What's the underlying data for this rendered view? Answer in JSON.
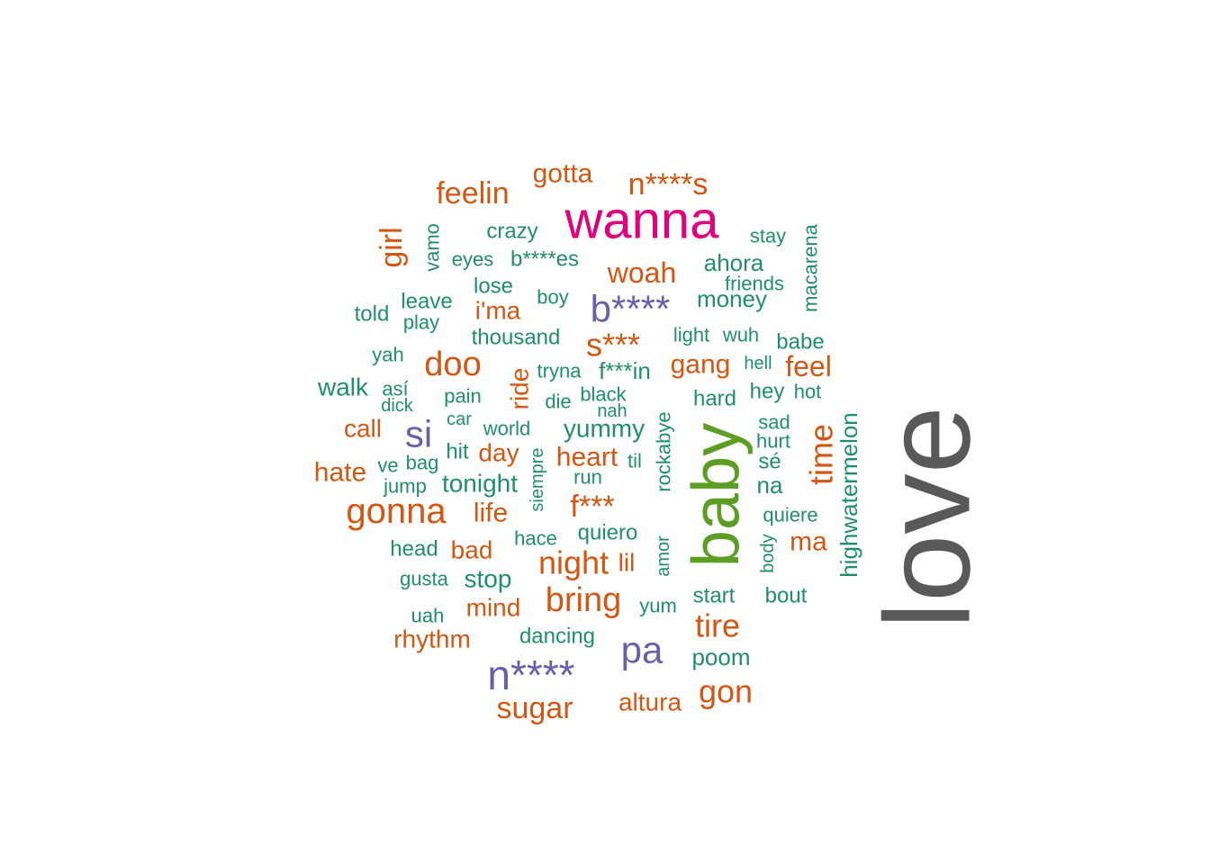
{
  "colors": {
    "dark_gray": "#595959",
    "green": "#5b9e23",
    "magenta": "#e0007c",
    "purple": "#6a5fa8",
    "orange": "#d35612",
    "teal": "#1f8f6b"
  },
  "words": [
    {
      "text": "love",
      "color": "dark_gray",
      "rotated": true
    },
    {
      "text": "baby",
      "color": "green",
      "rotated": true
    },
    {
      "text": "wanna",
      "color": "magenta"
    },
    {
      "text": "n****",
      "color": "purple"
    },
    {
      "text": "b****",
      "color": "purple"
    },
    {
      "text": "si",
      "color": "purple"
    },
    {
      "text": "pa",
      "color": "purple"
    },
    {
      "text": "gonna",
      "color": "orange"
    },
    {
      "text": "bring",
      "color": "orange"
    },
    {
      "text": "doo",
      "color": "orange"
    },
    {
      "text": "night",
      "color": "orange"
    },
    {
      "text": "tire",
      "color": "orange"
    },
    {
      "text": "gon",
      "color": "orange"
    },
    {
      "text": "sugar",
      "color": "orange"
    },
    {
      "text": "s***",
      "color": "orange"
    },
    {
      "text": "f***",
      "color": "orange"
    },
    {
      "text": "time",
      "color": "orange",
      "rotated": true
    },
    {
      "text": "n****s",
      "color": "orange"
    },
    {
      "text": "feelin",
      "color": "orange"
    },
    {
      "text": "girl",
      "color": "orange",
      "rotated": true
    },
    {
      "text": "woah",
      "color": "orange"
    },
    {
      "text": "gotta",
      "color": "orange"
    },
    {
      "text": "feel",
      "color": "orange"
    },
    {
      "text": "gang",
      "color": "orange"
    },
    {
      "text": "life",
      "color": "orange"
    },
    {
      "text": "heart",
      "color": "orange"
    },
    {
      "text": "hate",
      "color": "orange"
    },
    {
      "text": "ma",
      "color": "orange"
    },
    {
      "text": "i'ma",
      "color": "orange"
    },
    {
      "text": "ride",
      "color": "orange",
      "rotated": true
    },
    {
      "text": "day",
      "color": "orange"
    },
    {
      "text": "bad",
      "color": "orange"
    },
    {
      "text": "call",
      "color": "orange"
    },
    {
      "text": "mind",
      "color": "orange"
    },
    {
      "text": "rhythm",
      "color": "orange"
    },
    {
      "text": "altura",
      "color": "orange"
    },
    {
      "text": "lil",
      "color": "orange"
    },
    {
      "text": "crazy",
      "color": "teal"
    },
    {
      "text": "stay",
      "color": "teal"
    },
    {
      "text": "vamo",
      "color": "teal",
      "rotated": true
    },
    {
      "text": "eyes",
      "color": "teal"
    },
    {
      "text": "b****es",
      "color": "teal"
    },
    {
      "text": "ahora",
      "color": "teal"
    },
    {
      "text": "friends",
      "color": "teal"
    },
    {
      "text": "macarena",
      "color": "teal",
      "rotated": true
    },
    {
      "text": "lose",
      "color": "teal"
    },
    {
      "text": "leave",
      "color": "teal"
    },
    {
      "text": "boy",
      "color": "teal"
    },
    {
      "text": "money",
      "color": "teal"
    },
    {
      "text": "told",
      "color": "teal"
    },
    {
      "text": "play",
      "color": "teal"
    },
    {
      "text": "thousand",
      "color": "teal"
    },
    {
      "text": "light",
      "color": "teal"
    },
    {
      "text": "wuh",
      "color": "teal"
    },
    {
      "text": "babe",
      "color": "teal"
    },
    {
      "text": "yah",
      "color": "teal"
    },
    {
      "text": "tryna",
      "color": "teal"
    },
    {
      "text": "f***in",
      "color": "teal"
    },
    {
      "text": "hell",
      "color": "teal"
    },
    {
      "text": "walk",
      "color": "teal"
    },
    {
      "text": "así",
      "color": "teal"
    },
    {
      "text": "pain",
      "color": "teal"
    },
    {
      "text": "die",
      "color": "teal"
    },
    {
      "text": "black",
      "color": "teal"
    },
    {
      "text": "hard",
      "color": "teal"
    },
    {
      "text": "hey",
      "color": "teal"
    },
    {
      "text": "hot",
      "color": "teal"
    },
    {
      "text": "dick",
      "color": "teal"
    },
    {
      "text": "nah",
      "color": "teal"
    },
    {
      "text": "car",
      "color": "teal"
    },
    {
      "text": "world",
      "color": "teal"
    },
    {
      "text": "yummy",
      "color": "teal"
    },
    {
      "text": "rockabye",
      "color": "teal",
      "rotated": true
    },
    {
      "text": "sad",
      "color": "teal"
    },
    {
      "text": "hurt",
      "color": "teal"
    },
    {
      "text": "hit",
      "color": "teal"
    },
    {
      "text": "highwatermelon",
      "color": "teal",
      "rotated": true
    },
    {
      "text": "ve",
      "color": "teal"
    },
    {
      "text": "bag",
      "color": "teal"
    },
    {
      "text": "til",
      "color": "teal"
    },
    {
      "text": "sé",
      "color": "teal"
    },
    {
      "text": "siempre",
      "color": "teal",
      "rotated": true
    },
    {
      "text": "run",
      "color": "teal"
    },
    {
      "text": "jump",
      "color": "teal"
    },
    {
      "text": "tonight",
      "color": "teal"
    },
    {
      "text": "na",
      "color": "teal"
    },
    {
      "text": "quiere",
      "color": "teal"
    },
    {
      "text": "quiero",
      "color": "teal"
    },
    {
      "text": "hace",
      "color": "teal"
    },
    {
      "text": "head",
      "color": "teal"
    },
    {
      "text": "amor",
      "color": "teal",
      "rotated": true
    },
    {
      "text": "body",
      "color": "teal",
      "rotated": true
    },
    {
      "text": "gusta",
      "color": "teal"
    },
    {
      "text": "stop",
      "color": "teal"
    },
    {
      "text": "start",
      "color": "teal"
    },
    {
      "text": "bout",
      "color": "teal"
    },
    {
      "text": "yum",
      "color": "teal"
    },
    {
      "text": "uah",
      "color": "teal"
    },
    {
      "text": "dancing",
      "color": "teal"
    },
    {
      "text": "poom",
      "color": "teal"
    }
  ]
}
